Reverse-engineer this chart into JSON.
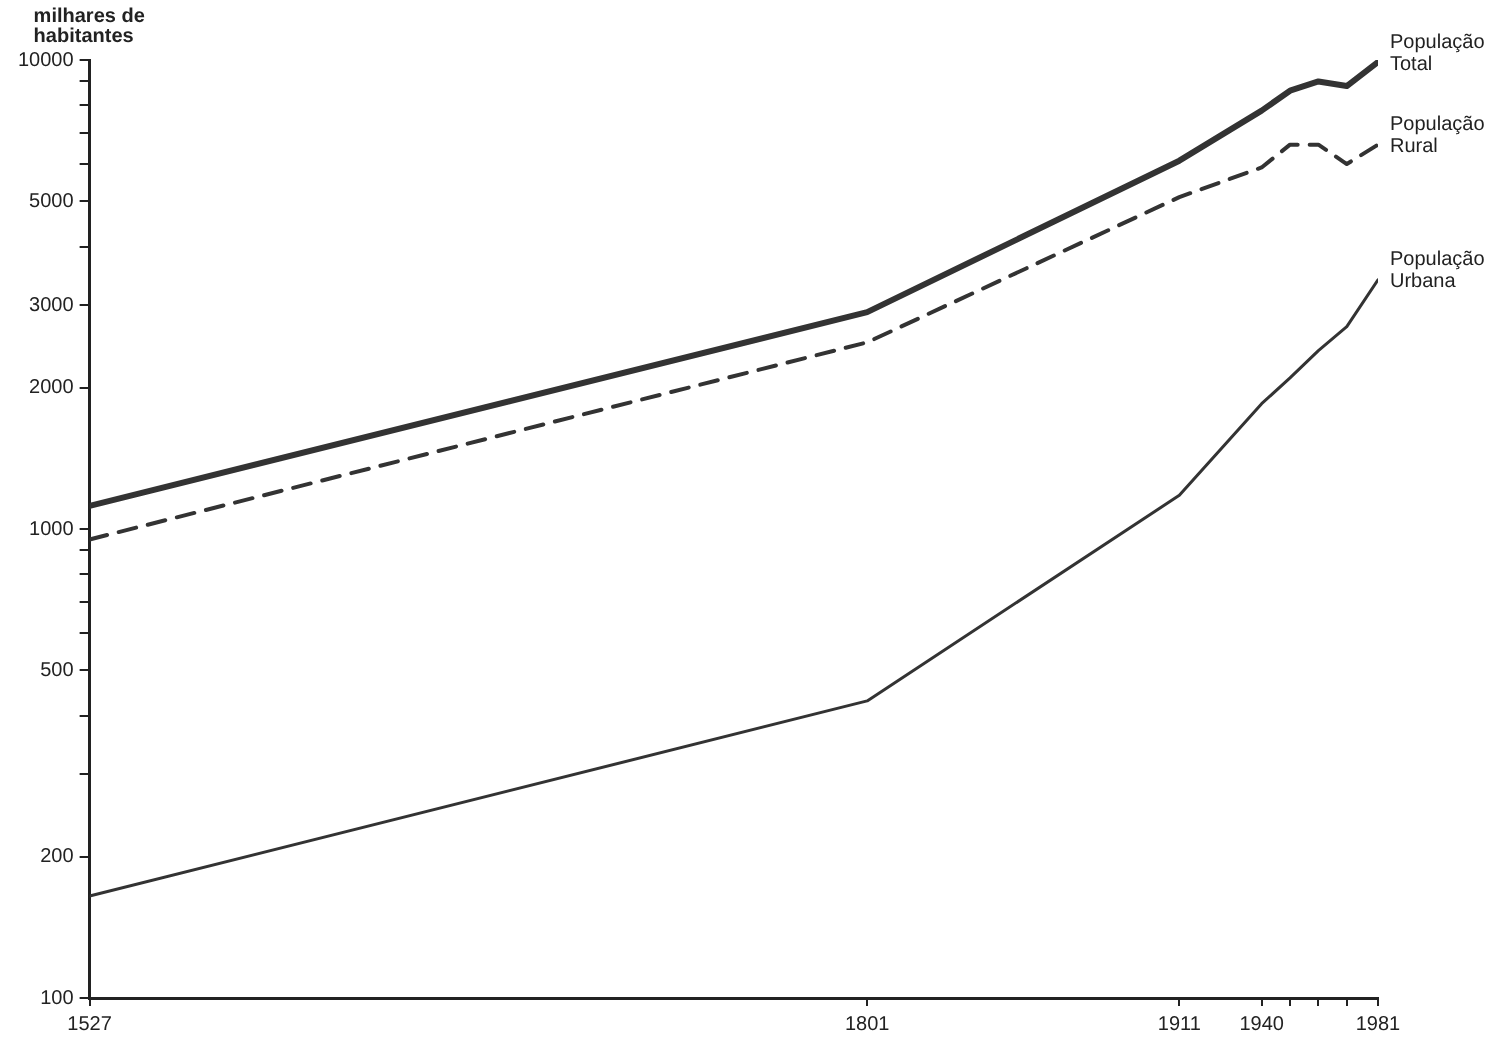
{
  "chart_data": {
    "type": "line",
    "ylabel": "milhares de habitantes",
    "log": "y",
    "grid": false,
    "legend": false,
    "marker": "none",
    "x": [
      1527,
      1801,
      1911,
      1940,
      1950,
      1960,
      1970,
      1981
    ],
    "xlim": [
      1527,
      1981
    ],
    "xticks": [
      1527,
      1801,
      1911,
      1940,
      {
        "value": 1950,
        "label": null
      },
      {
        "value": 1960,
        "label": null
      },
      {
        "value": 1970,
        "label": null
      },
      1981
    ],
    "ylim": [
      100,
      10000
    ],
    "yticks": [
      100,
      200,
      {
        "value": 300,
        "label": null
      },
      {
        "value": 400,
        "label": null
      },
      500,
      {
        "value": 600,
        "label": null
      },
      {
        "value": 700,
        "label": null
      },
      {
        "value": 800,
        "label": null
      },
      {
        "value": 900,
        "label": null
      },
      1000,
      2000,
      3000,
      {
        "value": 4000,
        "label": null
      },
      5000,
      {
        "value": 6000,
        "label": null
      },
      {
        "value": 7000,
        "label": null
      },
      {
        "value": 8000,
        "label": null
      },
      {
        "value": 9000,
        "label": null
      },
      10000
    ],
    "series": [
      {
        "name": "População Total",
        "color": "#333333",
        "line_style": "solid",
        "values": [
          1120,
          2900,
          6100,
          7800,
          8600,
          9000,
          8800,
          9900
        ]
      },
      {
        "name": "População Rural",
        "color": "#333333",
        "line_style": "dashed",
        "values": [
          950,
          2500,
          5100,
          5900,
          6600,
          6600,
          6000,
          6600
        ]
      },
      {
        "name": "População Urbana",
        "color": "#333333",
        "line_style": "solid",
        "values": [
          165,
          430,
          1180,
          1850,
          2100,
          2400,
          2700,
          3400
        ]
      }
    ]
  }
}
